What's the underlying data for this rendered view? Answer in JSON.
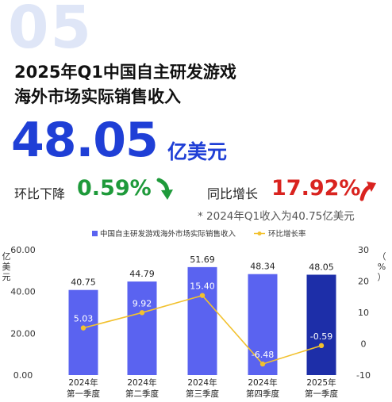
{
  "header": {
    "section_number": "05",
    "title_line1": "2025年Q1中国自主研发游戏",
    "title_line2": "海外市场实际销售收入",
    "hero_value": "48.05",
    "hero_unit": "亿美元"
  },
  "kpis": {
    "qoq_label": "环比下降",
    "qoq_value": "0.59%",
    "yoy_label": "同比增长",
    "yoy_value": "17.92%",
    "note": "* 2024年Q1收入为40.75亿美元",
    "down_color": "#1e9a3a",
    "up_color": "#d9231f"
  },
  "chart_data": {
    "type": "bar",
    "legend": {
      "bar_label": "中国自主研发游戏海外市场实际销售收入",
      "line_label": "环比增长率",
      "placement": "top"
    },
    "left_axis": {
      "label": "亿美元",
      "ylim": [
        0,
        60
      ],
      "ticks": [
        "0.00",
        "20.00",
        "40.00",
        "60.00"
      ]
    },
    "right_axis": {
      "label": "%",
      "ylim": [
        -10,
        30
      ],
      "ticks": [
        "-10",
        "0",
        "10",
        "20",
        "30"
      ]
    },
    "categories": [
      {
        "l1": "2024年",
        "l2": "第一季度"
      },
      {
        "l1": "2024年",
        "l2": "第二季度"
      },
      {
        "l1": "2024年",
        "l2": "第三季度"
      },
      {
        "l1": "2024年",
        "l2": "第四季度"
      },
      {
        "l1": "2025年",
        "l2": "第一季度"
      }
    ],
    "series": [
      {
        "kind": "bar",
        "values": [
          40.75,
          44.79,
          51.69,
          48.34,
          48.05
        ],
        "labels": [
          "40.75",
          "44.79",
          "51.69",
          "48.34",
          "48.05"
        ],
        "color": "#5a63f0",
        "highlight_color": "#1d2ea8"
      },
      {
        "kind": "line",
        "values": [
          5.03,
          9.92,
          15.4,
          -6.48,
          -0.59
        ],
        "labels": [
          "5.03",
          "9.92",
          "15.40",
          "-6.48",
          "-0.59"
        ],
        "color": "#f2c12e"
      }
    ]
  }
}
